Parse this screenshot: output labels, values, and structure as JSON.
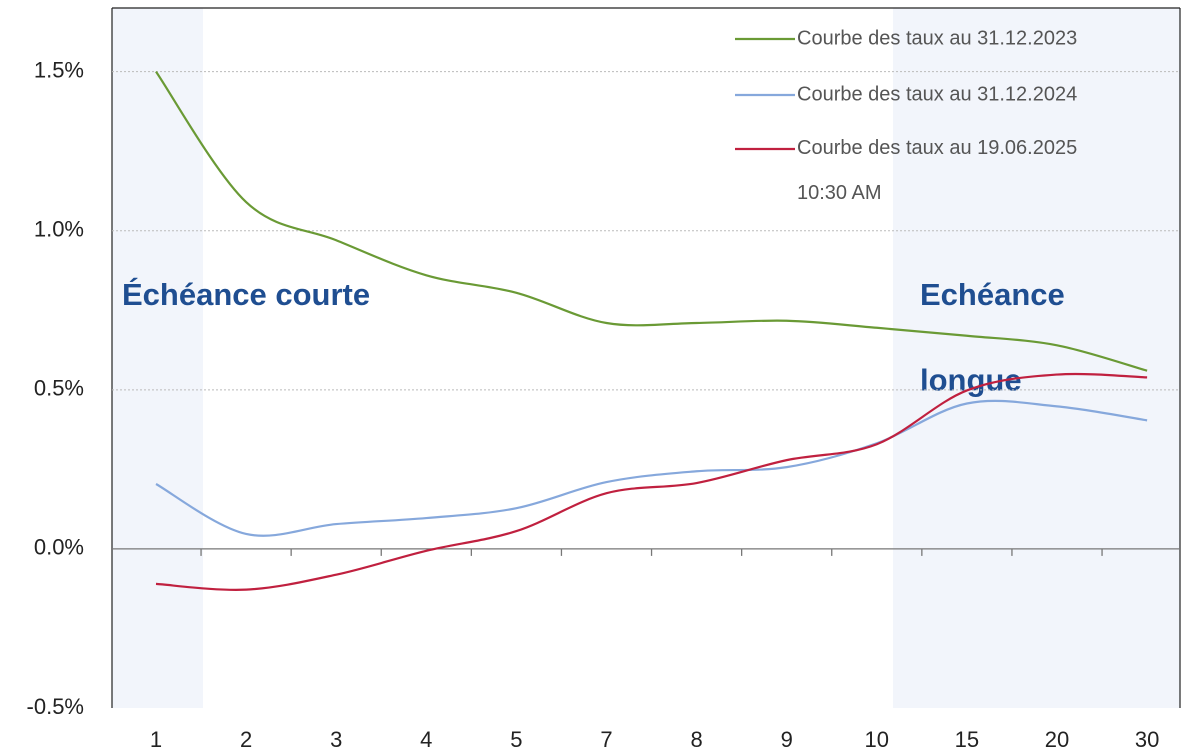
{
  "chart_data": {
    "type": "line",
    "categories": [
      "1",
      "2",
      "3",
      "4",
      "5",
      "7",
      "8",
      "9",
      "10",
      "15",
      "20",
      "30"
    ],
    "series": [
      {
        "name": "Courbe des taux au 31.12.2023",
        "color": "#6a9a35",
        "values": [
          1.5,
          1.09,
          0.97,
          0.86,
          0.805,
          0.71,
          0.71,
          0.717,
          0.695,
          0.67,
          0.64,
          0.56
        ]
      },
      {
        "name": "Courbe des taux au 31.12.2024",
        "color": "#86a8dc",
        "values": [
          0.204,
          0.047,
          0.078,
          0.097,
          0.128,
          0.21,
          0.244,
          0.257,
          0.332,
          0.457,
          0.448,
          0.404
        ]
      },
      {
        "name": "Courbe des taux au 19.06.2025\n10:30 AM",
        "color": "#c0203f",
        "values": [
          -0.11,
          -0.128,
          -0.081,
          -0.006,
          0.056,
          0.175,
          0.207,
          0.279,
          0.329,
          0.498,
          0.548,
          0.539
        ]
      }
    ],
    "annotations": [
      "Échéance courte",
      "Echéance\nlongue"
    ],
    "ylim": [
      -0.5,
      1.7
    ],
    "yticks": [
      {
        "value": -0.5,
        "label": "-0.5%"
      },
      {
        "value": 0,
        "label": "0.0%"
      },
      {
        "value": 0.5,
        "label": "0.5%"
      },
      {
        "value": 1.0,
        "label": "1.0%"
      },
      {
        "value": 1.5,
        "label": "1.5%"
      }
    ],
    "grid": true,
    "legend": "upper right"
  }
}
